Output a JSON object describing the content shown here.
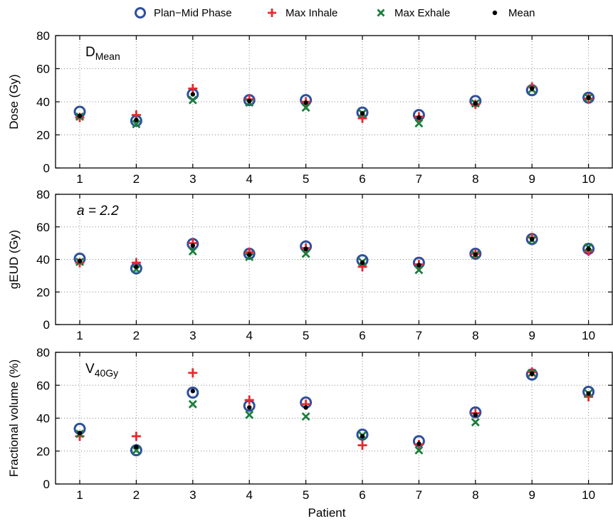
{
  "chart_data": [
    {
      "type": "scatter",
      "panel": "dmean",
      "annotation": {
        "main": "D",
        "sub": "Mean"
      },
      "ylabel": "Dose (Gy)",
      "xlabel": "",
      "x": [
        1,
        2,
        3,
        4,
        5,
        6,
        7,
        8,
        9,
        10
      ],
      "xticks": [
        "1",
        "2",
        "3",
        "4",
        "5",
        "6",
        "7",
        "8",
        "9",
        "10"
      ],
      "ylim": [
        0,
        80
      ],
      "yticks": [
        0,
        20,
        40,
        60,
        80
      ],
      "grid": "dotted",
      "series": [
        {
          "name": "Plan−Mid Phase",
          "values": [
            34,
            28.5,
            44.5,
            41,
            41,
            33.5,
            32,
            40.5,
            47,
            42.5
          ]
        },
        {
          "name": "Max Inhale",
          "values": [
            30.5,
            32,
            48,
            41.5,
            40,
            30,
            31,
            38.5,
            49,
            42
          ]
        },
        {
          "name": "Max Exhale",
          "values": [
            31,
            26.5,
            41,
            39.5,
            36.5,
            33,
            27,
            39,
            47.5,
            42.5
          ]
        },
        {
          "name": "Mean",
          "values": [
            31.5,
            29,
            44.5,
            40.5,
            39.5,
            33,
            30.5,
            39,
            48,
            42.5
          ]
        }
      ]
    },
    {
      "type": "scatter",
      "panel": "geud",
      "annotation": {
        "main": "a = 2.2",
        "sub": ""
      },
      "ylabel": "gEUD (Gy)",
      "xlabel": "",
      "x": [
        1,
        2,
        3,
        4,
        5,
        6,
        7,
        8,
        9,
        10
      ],
      "xticks": [
        "1",
        "2",
        "3",
        "4",
        "5",
        "6",
        "7",
        "8",
        "9",
        "10"
      ],
      "ylim": [
        0,
        80
      ],
      "yticks": [
        0,
        20,
        40,
        60,
        80
      ],
      "grid": "dotted",
      "series": [
        {
          "name": "Plan−Mid Phase",
          "values": [
            40.5,
            34.5,
            49.5,
            43.5,
            48,
            39.5,
            38,
            43.5,
            52.5,
            46.5
          ]
        },
        {
          "name": "Max Inhale",
          "values": [
            38,
            38,
            50,
            44.5,
            47,
            35.5,
            37,
            43.5,
            53.5,
            45
          ]
        },
        {
          "name": "Max Exhale",
          "values": [
            38.5,
            34,
            45,
            41.5,
            43.5,
            38.5,
            33.5,
            43,
            52,
            47.5
          ]
        },
        {
          "name": "Mean",
          "values": [
            39,
            35.5,
            48.5,
            43,
            46.5,
            38,
            36.5,
            43,
            52.5,
            46.5
          ]
        }
      ]
    },
    {
      "type": "scatter",
      "panel": "v40",
      "annotation": {
        "main": "V",
        "sub": "40Gy"
      },
      "ylabel": "Fractional volume (%)",
      "xlabel": "Patient",
      "x": [
        1,
        2,
        3,
        4,
        5,
        6,
        7,
        8,
        9,
        10
      ],
      "xticks": [
        "1",
        "2",
        "3",
        "4",
        "5",
        "6",
        "7",
        "8",
        "9",
        "10"
      ],
      "ylim": [
        0,
        80
      ],
      "yticks": [
        0,
        20,
        40,
        60,
        80
      ],
      "grid": "dotted",
      "series": [
        {
          "name": "Plan−Mid Phase",
          "values": [
            33.5,
            20.5,
            55.5,
            47.5,
            49.5,
            30,
            26,
            43.5,
            66.5,
            56
          ]
        },
        {
          "name": "Max Inhale",
          "values": [
            29,
            29,
            67.5,
            51,
            48.5,
            23.5,
            24,
            43,
            68,
            53
          ]
        },
        {
          "name": "Max Exhale",
          "values": [
            30.5,
            20.5,
            48.5,
            42,
            41,
            29.5,
            20.5,
            37.5,
            67.5,
            55
          ]
        },
        {
          "name": "Mean",
          "values": [
            31,
            22.5,
            56.5,
            46.5,
            46.5,
            29,
            24.5,
            42,
            67,
            55
          ]
        }
      ]
    }
  ],
  "legend": {
    "placement": "top",
    "items": [
      {
        "label": "Plan−Mid Phase",
        "marker": "open-circle-icon",
        "color": "#2e4f9e"
      },
      {
        "label": "Max Inhale",
        "marker": "plus-icon",
        "color": "#e8292e"
      },
      {
        "label": "Max Exhale",
        "marker": "cross-icon",
        "color": "#1a7f3c"
      },
      {
        "label": "Mean",
        "marker": "dot-icon",
        "color": "#000000"
      }
    ]
  }
}
